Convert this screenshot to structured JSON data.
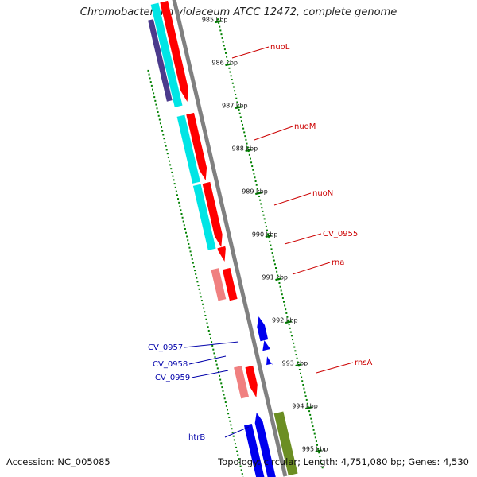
{
  "title": "Chromobacterium violaceum ATCC 12472, complete genome",
  "footer": {
    "accession": "Accession: NC_005085",
    "topology": "Topology: circular; Length: 4,751,080 bp; Genes: 4,530"
  },
  "colors": {
    "forward_cds": "#ff0000",
    "forward_rna": "#f08080",
    "reverse_cds": "#0000ee",
    "forward_gene_track": "#00e5e5",
    "reverse_gene_track": "#6b8e23",
    "dark_track": "#4b3a8c",
    "backbone": "#808080",
    "tick": "#008000",
    "forward_label": "#cc0000",
    "reverse_label": "#0000aa"
  },
  "ticks": [
    {
      "label": "985 kbp"
    },
    {
      "label": "986 kbp"
    },
    {
      "label": "987 kbp"
    },
    {
      "label": "988 kbp"
    },
    {
      "label": "989 kbp"
    },
    {
      "label": "990 kbp"
    },
    {
      "label": "991 kbp"
    },
    {
      "label": "992 kbp"
    },
    {
      "label": "993 kbp"
    },
    {
      "label": "994 kbp"
    },
    {
      "label": "995 kbp"
    }
  ],
  "gene_labels": [
    {
      "name": "nuoL",
      "strand": "forward"
    },
    {
      "name": "nuoM",
      "strand": "forward"
    },
    {
      "name": "nuoN",
      "strand": "forward"
    },
    {
      "name": "CV_0955",
      "strand": "forward"
    },
    {
      "name": "rna",
      "strand": "forward"
    },
    {
      "name": "rnsA",
      "strand": "forward"
    },
    {
      "name": "CV_0957",
      "strand": "reverse"
    },
    {
      "name": "CV_0958",
      "strand": "reverse"
    },
    {
      "name": "CV_0959",
      "strand": "reverse"
    },
    {
      "name": "htrB",
      "strand": "reverse"
    }
  ]
}
